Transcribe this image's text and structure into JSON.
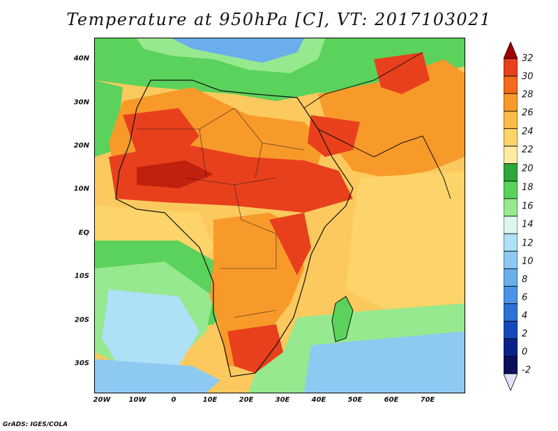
{
  "title": "Temperature at 950hPa [C], VT: 2017103021",
  "footer": "GrADS: IGES/COLA",
  "map": {
    "lat_labels": [
      "40N",
      "30N",
      "20N",
      "10N",
      "EQ",
      "10S",
      "20S",
      "30S"
    ],
    "lon_labels": [
      "20W",
      "10W",
      "0",
      "10E",
      "20E",
      "30E",
      "40E",
      "50E",
      "60E",
      "70E"
    ]
  },
  "colorbar": {
    "labels": [
      "32",
      "30",
      "28",
      "26",
      "24",
      "22",
      "20",
      "18",
      "16",
      "14",
      "12",
      "10",
      "8",
      "6",
      "4",
      "2",
      "0",
      "-2"
    ],
    "colors": [
      "#a00000",
      "#e8401c",
      "#f26a1a",
      "#f89a2a",
      "#fbb945",
      "#fcd46a",
      "#fdeca0",
      "#2ea83a",
      "#5bd25b",
      "#96e98e",
      "#def7ee",
      "#aee0f6",
      "#8ec9f2",
      "#6aaeec",
      "#4b93e6",
      "#2e72d8",
      "#1449ba",
      "#0a238a",
      "#0a0f5a",
      "#e2e2ff"
    ]
  }
}
